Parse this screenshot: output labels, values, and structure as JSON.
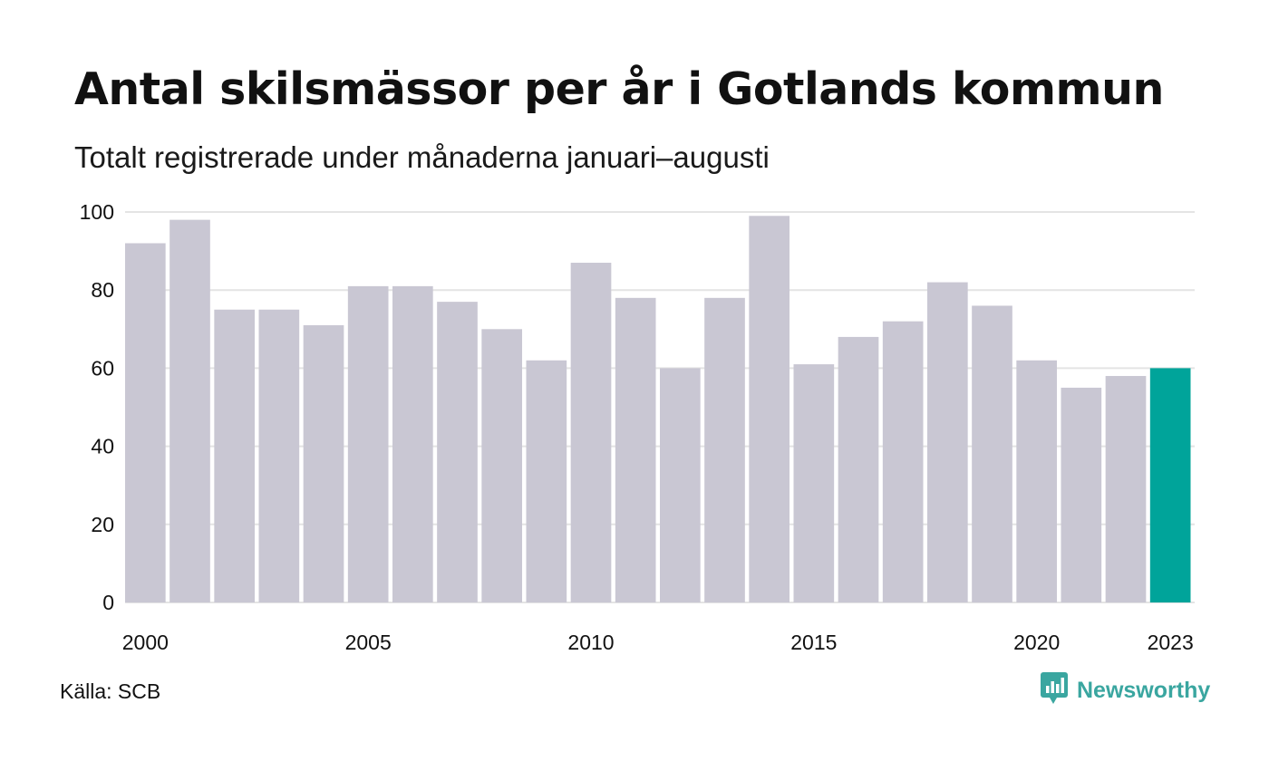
{
  "header": {
    "title": "Antal skilsmässor per år i Gotlands kommun",
    "subtitle": "Totalt registrerade under månaderna januari–augusti"
  },
  "footer": {
    "source": "Källa: SCB",
    "brand": "Newsworthy"
  },
  "colors": {
    "bar": "#c9c7d3",
    "highlight": "#00a49a",
    "grid": "#e4e4e4",
    "text": "#111111"
  },
  "chart_data": {
    "type": "bar",
    "title": "Antal skilsmässor per år i Gotlands kommun",
    "subtitle": "Totalt registrerade under månaderna januari–augusti",
    "categories": [
      2000,
      2001,
      2002,
      2003,
      2004,
      2005,
      2006,
      2007,
      2008,
      2009,
      2010,
      2011,
      2012,
      2013,
      2014,
      2015,
      2016,
      2017,
      2018,
      2019,
      2020,
      2021,
      2022,
      2023
    ],
    "values": [
      92,
      98,
      75,
      75,
      71,
      81,
      81,
      77,
      70,
      62,
      87,
      78,
      60,
      78,
      99,
      61,
      68,
      72,
      82,
      76,
      62,
      55,
      58,
      60
    ],
    "highlight_category": 2023,
    "ylim": [
      0,
      100
    ],
    "yticks": [
      0,
      20,
      40,
      60,
      80,
      100
    ],
    "xtick_labels": [
      "2000",
      "2005",
      "2010",
      "2015",
      "2020",
      "2023"
    ],
    "grid": true,
    "xlabel": "",
    "ylabel": ""
  }
}
